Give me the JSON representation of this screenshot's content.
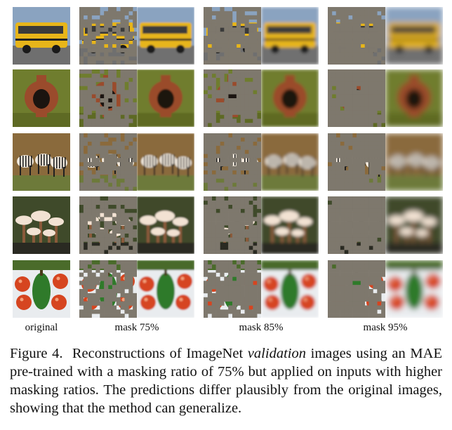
{
  "figure": {
    "column_labels": [
      "original",
      "mask 75%",
      "mask 85%",
      "mask 95%"
    ],
    "rows": [
      {
        "subject": "school bus",
        "colors": {
          "bg": "#8aa3c0",
          "main": "#e7b51a",
          "accent": "#2b2b2b",
          "ground": "#6f6f6f"
        }
      },
      {
        "subject": "amphora vase",
        "colors": {
          "bg": "#6f7d2e",
          "main": "#9a4b2c",
          "accent": "#1b1410",
          "ground": "#5e6a24"
        }
      },
      {
        "subject": "zebras",
        "colors": {
          "bg": "#8a6a3c",
          "main": "#efe6da",
          "accent": "#202020",
          "ground": "#6d7a3a"
        }
      },
      {
        "subject": "mushrooms",
        "colors": {
          "bg": "#3f4a2a",
          "main": "#f2e2d3",
          "accent": "#8a5a3a",
          "ground": "#2a2a22"
        }
      },
      {
        "subject": "vegetables",
        "colors": {
          "bg": "#e9ecef",
          "main": "#d64520",
          "accent": "#2f7a2a",
          "ground": "#4a6b2a"
        }
      }
    ],
    "mask_gray": "#7e786d"
  },
  "caption": {
    "label": "Figure 4.",
    "text_before": "Reconstructions of ImageNet",
    "italic": "validation",
    "text_after": "images using an MAE pre-trained with a masking ratio of 75% but applied on inputs with higher masking ratios. The predictions differ plausibly from the original images, showing that the method can generalize."
  }
}
